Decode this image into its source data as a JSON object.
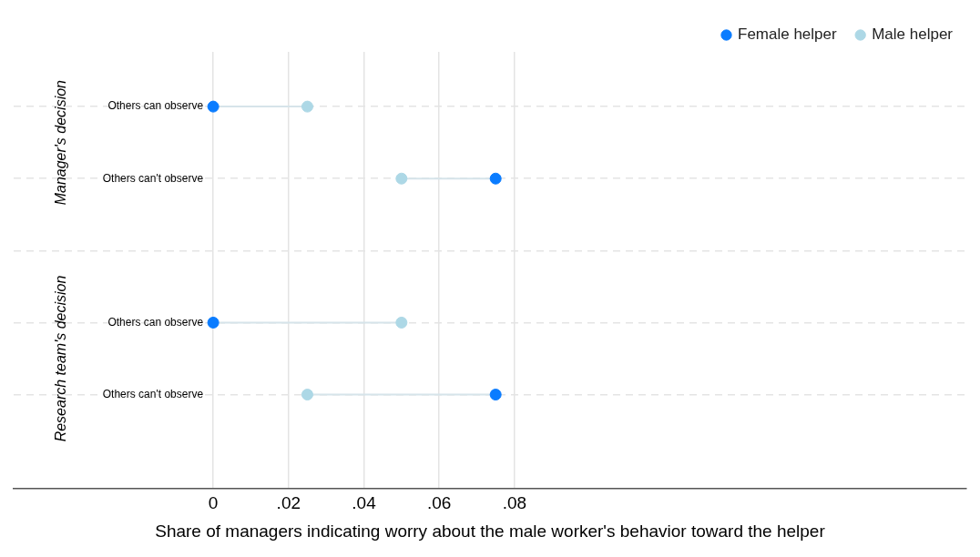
{
  "chart_data": {
    "type": "scatter",
    "orientation": "horizontal",
    "xlabel": "Share of managers indicating worry about the male worker's behavior toward the helper",
    "categories": [
      "Others can observe",
      "Others can't observe",
      null,
      "Others can observe",
      "Others can't observe"
    ],
    "series": [
      {
        "name": "Female helper",
        "color": "#0a7cff",
        "values": [
          0,
          0.075,
          null,
          0,
          0.075
        ]
      },
      {
        "name": "Male helper",
        "color": "#add8e6",
        "values": [
          0.025,
          0.05,
          null,
          0.05,
          0.025
        ]
      }
    ],
    "annotations": [
      "Manager's decision",
      "Research team's decision"
    ],
    "xlim": [
      -0.053,
      0.2
    ],
    "xticks": [
      0,
      {
        "value": 0.02,
        "label": ".02"
      },
      {
        "value": 0.04,
        "label": ".04"
      },
      {
        "value": 0.06,
        "label": ".06"
      },
      {
        "value": 0.08,
        "label": ".08"
      }
    ],
    "grid": true,
    "legend": "top right",
    "marker": "circle"
  }
}
